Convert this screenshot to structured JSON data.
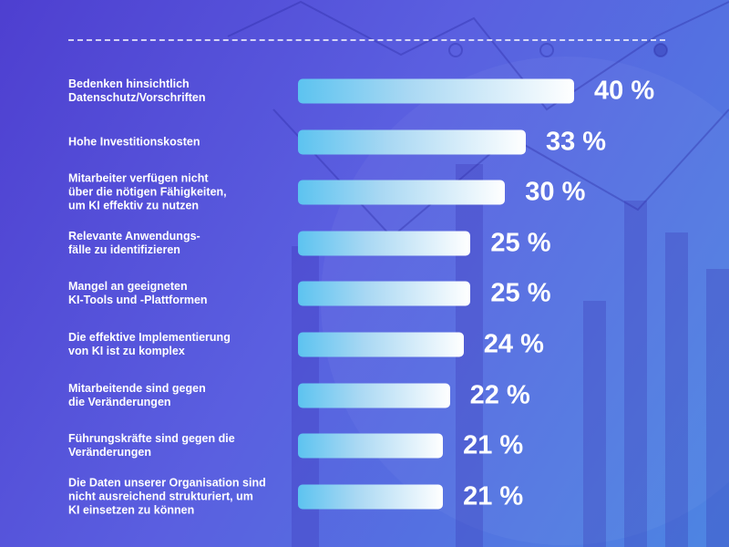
{
  "chart_data": {
    "type": "bar",
    "orientation": "horizontal",
    "categories": [
      "Bedenken hinsichtlich\nDatenschutz/Vorschriften",
      "Hohe Investitionskosten",
      "Mitarbeiter verfügen nicht\nüber die nötigen Fähigkeiten,\num KI effektiv zu nutzen",
      "Relevante Anwendungs-\nfälle zu identifizieren",
      "Mangel an geeigneten\nKI-Tools und -Plattformen",
      "Die effektive Implementierung\nvon KI ist zu komplex",
      "Mitarbeitende sind gegen\ndie Veränderungen",
      "Führungskräfte sind gegen die\nVeränderungen",
      "Die Daten unserer Organisation sind\nnicht ausreichend strukturiert, um\nKI einsetzen zu können"
    ],
    "values": [
      40,
      33,
      30,
      25,
      25,
      24,
      22,
      21,
      21
    ],
    "value_labels": [
      "40 %",
      "33 %",
      "30 %",
      "25 %",
      "25 %",
      "24 %",
      "22 %",
      "21 %",
      "21 %"
    ],
    "unit": "%",
    "colors": {
      "bar_start": "#5cc3f0",
      "bar_end": "#ffffff",
      "background": "#5249d6",
      "text": "#ffffff"
    }
  }
}
